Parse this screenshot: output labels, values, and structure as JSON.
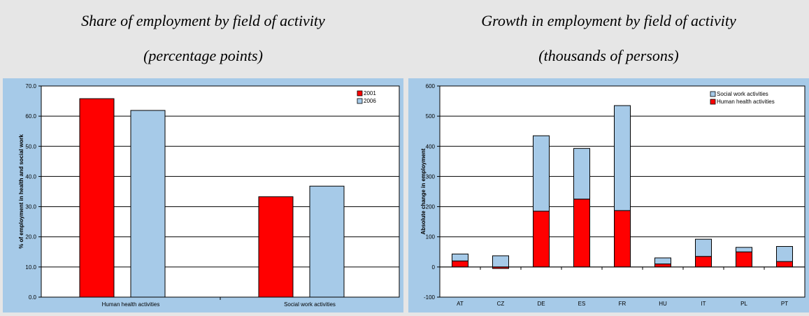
{
  "captions": {
    "left_title": "Share of employment by field of activity",
    "left_subtitle": "(percentage points)",
    "right_title": "Growth in employment by field of activity",
    "right_subtitle": "(thousands of persons)"
  },
  "colors": {
    "background": "#e6e6e6",
    "chart_frame": "#a6cae8",
    "plot_bg": "#ffffff",
    "red": "#ff0000",
    "light_blue": "#a6cae8"
  },
  "chart_data": [
    {
      "type": "bar",
      "categories": [
        "Human health activities",
        "Social work activities"
      ],
      "series": [
        {
          "name": "2001",
          "color": "#ff0000",
          "values": [
            65.8,
            33.3
          ]
        },
        {
          "name": "2006",
          "color": "#a6cae8",
          "values": [
            61.9,
            36.8
          ]
        }
      ],
      "ylabel": "% of employment in health and social work",
      "ylim": [
        0,
        70
      ],
      "yticks": [
        "0.0",
        "10.0",
        "20.0",
        "30.0",
        "40.0",
        "50.0",
        "60.0",
        "70.0"
      ],
      "grid": true,
      "legend": "top-right"
    },
    {
      "type": "bar",
      "stacked": true,
      "categories": [
        "AT",
        "CZ",
        "DE",
        "ES",
        "FR",
        "HU",
        "IT",
        "PL",
        "PT"
      ],
      "series": [
        {
          "name": "Human health activities",
          "color": "#ff0000",
          "values": [
            20,
            -5,
            185,
            225,
            187,
            10,
            35,
            50,
            18
          ]
        },
        {
          "name": "Social work activities",
          "color": "#a6cae8",
          "values": [
            23,
            37,
            250,
            168,
            348,
            20,
            57,
            15,
            50
          ]
        }
      ],
      "ylabel": "Absolute change in employment",
      "ylim": [
        -100,
        600
      ],
      "yticks": [
        "-100",
        "0",
        "100",
        "200",
        "300",
        "400",
        "500",
        "600"
      ],
      "grid": true,
      "legend": "top-right",
      "legend_order": [
        "Social work activities",
        "Human health activities"
      ]
    }
  ]
}
